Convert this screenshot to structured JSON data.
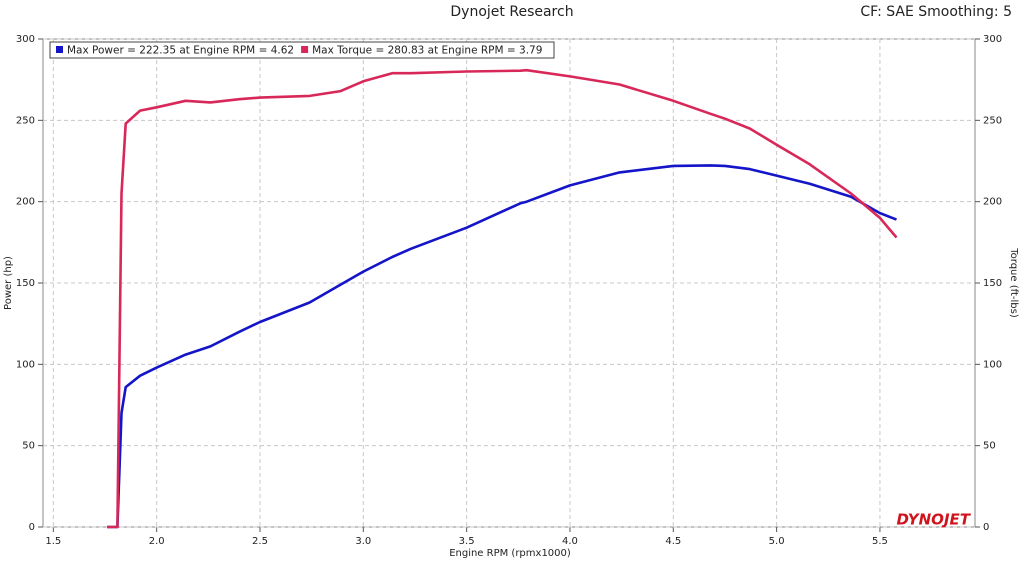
{
  "chart_data": {
    "type": "line",
    "title": "Dynojet Research",
    "subtitle": "CF: SAE Smoothing: 5",
    "logo": "DYNOJET",
    "xlabel": "Engine RPM (rpmx1000)",
    "ylabel": "Power (hp)",
    "y2label": "Torque (ft-lbs)",
    "grid": true,
    "legend": "top-left",
    "xlim": [
      1.45,
      5.96
    ],
    "xticks": [
      1.5,
      {
        "value": 2,
        "label": "2.0"
      },
      2.5,
      {
        "value": 3,
        "label": "3.0"
      },
      3.5,
      {
        "value": 4,
        "label": "4.0"
      },
      4.5,
      {
        "value": 5,
        "label": "5.0"
      },
      5.5
    ],
    "ylim": [
      0,
      300
    ],
    "yticks": [
      0,
      50,
      100,
      150,
      200,
      250,
      300
    ],
    "y2lim": [
      0,
      300
    ],
    "y2ticks": [
      0,
      50,
      100,
      150,
      200,
      250,
      300
    ],
    "x": [
      1.76,
      1.81,
      1.83,
      1.85,
      1.92,
      2.0,
      2.14,
      2.26,
      2.4,
      2.5,
      2.74,
      2.89,
      3.0,
      3.14,
      3.23,
      3.5,
      3.76,
      3.79,
      4.0,
      4.24,
      4.5,
      4.68,
      4.75,
      4.87,
      5.0,
      5.16,
      5.36,
      5.5,
      5.58
    ],
    "series": [
      {
        "name": "Max Power = 222.35 at Engine RPM = 4.62",
        "color": "#1414c8",
        "values": [
          0,
          0,
          70,
          86,
          93,
          98,
          106,
          111,
          120,
          126,
          138,
          149,
          157,
          166,
          171,
          184,
          199,
          200,
          210,
          218,
          222,
          222.3,
          222,
          220,
          216,
          211,
          203,
          193,
          189
        ]
      },
      {
        "name": "Max Torque = 280.83 at Engine RPM = 3.79",
        "color": "#d8285a",
        "axis": "y2",
        "values": [
          0,
          0,
          205,
          248,
          256,
          258,
          262,
          261,
          263,
          264,
          265,
          268,
          274,
          279,
          279,
          280,
          280.5,
          280.8,
          277,
          272,
          262,
          254,
          251,
          245,
          235,
          223,
          205,
          190,
          178
        ]
      }
    ]
  }
}
